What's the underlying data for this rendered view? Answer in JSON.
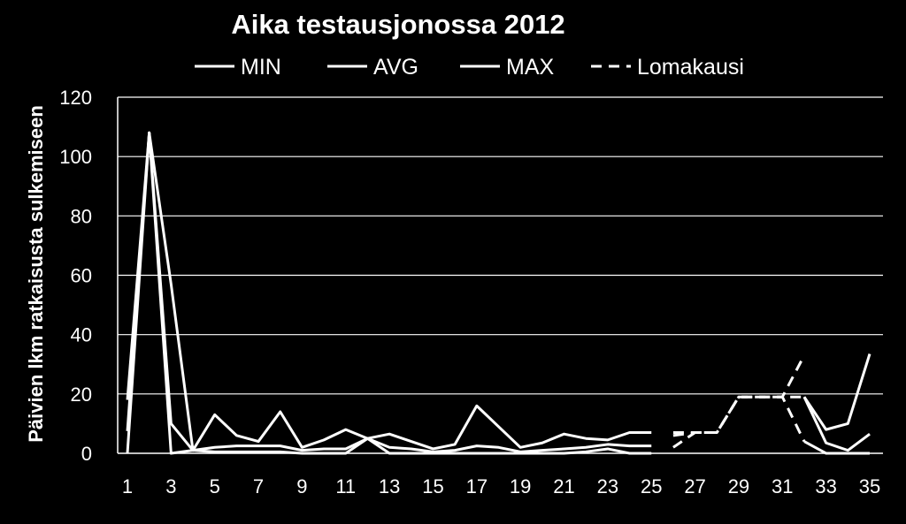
{
  "chart_data": {
    "type": "line",
    "title": "Aika testausjonossa 2012",
    "xlabel": "",
    "ylabel": "Päivien lkm ratkaisusta sulkemiseen",
    "ylim": [
      0,
      120
    ],
    "yticks": [
      "0",
      "20",
      "40",
      "60",
      "80",
      "100",
      "120"
    ],
    "xticks": [
      "1",
      "3",
      "5",
      "7",
      "9",
      "11",
      "13",
      "15",
      "17",
      "19",
      "21",
      "23",
      "25",
      "27",
      "29",
      "31",
      "33",
      "35"
    ],
    "x": [
      1,
      2,
      3,
      4,
      5,
      6,
      7,
      8,
      9,
      10,
      11,
      12,
      13,
      14,
      15,
      16,
      17,
      18,
      19,
      20,
      21,
      22,
      23,
      24,
      25,
      26,
      27,
      28,
      29,
      30,
      31,
      32,
      33,
      34,
      35
    ],
    "grid": true,
    "legend_position": "top",
    "colors": {
      "background": "#000000",
      "line": "#ffffff",
      "grid": "#ffffff"
    },
    "series": [
      {
        "name": "MIN",
        "style": "solid",
        "values": [
          0,
          108,
          0,
          1,
          0.5,
          0.5,
          0.5,
          0.5,
          0,
          0,
          0,
          5,
          0,
          0,
          0,
          0,
          0,
          0,
          0,
          0,
          0,
          0.5,
          1.5,
          0,
          0,
          null,
          null,
          null,
          null,
          null,
          null,
          4,
          0,
          0,
          0
        ]
      },
      {
        "name": "AVG",
        "style": "solid",
        "values": [
          7.5,
          108,
          10,
          1,
          2,
          2.5,
          2.5,
          2.5,
          1,
          1.5,
          1.5,
          5,
          2,
          1.5,
          0.5,
          1,
          2.5,
          2,
          0.5,
          1,
          1.5,
          2,
          3,
          2.5,
          2.5,
          null,
          null,
          null,
          null,
          null,
          null,
          19,
          3.5,
          1,
          6.5
        ]
      },
      {
        "name": "MAX",
        "style": "solid",
        "values": [
          18,
          108,
          57,
          1,
          13,
          6,
          4,
          14,
          2,
          4.5,
          8,
          5,
          6.5,
          4,
          1.5,
          3,
          16,
          9,
          2,
          3.5,
          6.5,
          5,
          4.5,
          7,
          7,
          null,
          null,
          null,
          null,
          null,
          null,
          19,
          8,
          10,
          33.5
        ]
      },
      {
        "name": "Lomakausi",
        "style": "dashed",
        "lines": [
          {
            "x": [
              26,
              27,
              28,
              29,
              30,
              31,
              32
            ],
            "values": [
              6,
              7,
              7,
              19,
              19,
              19,
              33
            ]
          },
          {
            "x": [
              26,
              27,
              28,
              29,
              30,
              31,
              32
            ],
            "values": [
              2,
              7,
              7,
              19,
              19,
              19,
              19
            ]
          },
          {
            "x": [
              26,
              27,
              28,
              29,
              30,
              31,
              32
            ],
            "values": [
              7,
              7,
              7,
              19,
              19,
              19,
              4
            ]
          }
        ]
      }
    ]
  }
}
